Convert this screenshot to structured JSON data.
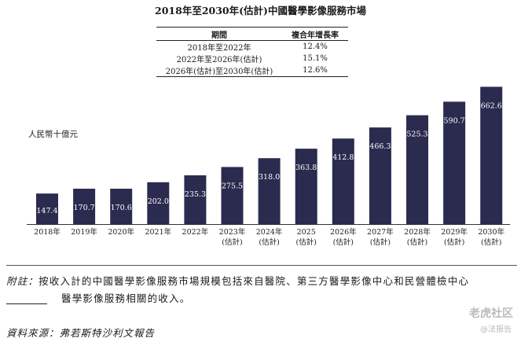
{
  "title": "2018年至2030年(估計)中國醫學影像服務市場",
  "cagr_table": {
    "headers": [
      "期間",
      "複合年增長率"
    ],
    "rows": [
      [
        "2018年至2022年",
        "12.4%"
      ],
      [
        "2022年至2026年(估計)",
        "15.1%"
      ],
      [
        "2026年(估計)至2030年(估計)",
        "12.6%"
      ]
    ]
  },
  "unit_label": "人民幣十億元",
  "chart_data": {
    "type": "bar",
    "categories": [
      "2018年",
      "2019年",
      "2020年",
      "2021年",
      "2022年",
      "2023年\n(估計)",
      "2024年\n(估計)",
      "2025\n(估計)",
      "2026年\n(估計)",
      "2027年\n(估計)",
      "2028年\n(估計)",
      "2029年\n(估計)",
      "2030年\n(估計)"
    ],
    "values": [
      147.4,
      170.7,
      170.6,
      202.0,
      235.3,
      275.5,
      318.0,
      363.8,
      412.8,
      466.3,
      525.3,
      590.7,
      662.6
    ],
    "value_labels": [
      "147.4",
      "170.7",
      "170.6",
      "202.0",
      "235.3",
      "275.5",
      "318.0",
      "363.8",
      "412.8",
      "466.3",
      "525.3",
      "590.7",
      "662.6"
    ],
    "ylabel": "人民幣十億元",
    "color": "#2b2b4f"
  },
  "note": {
    "lead": "附註：",
    "line1": "按收入計的中國醫學影像服務市場規模包括來自醫院、第三方醫學影像中心和民營體檢中心",
    "line2": "醫學影像服務相關的收入。"
  },
  "source": "資料來源：弗若斯特沙利文報告",
  "watermark": {
    "main": "老虎社区",
    "sub": "@法报告"
  }
}
